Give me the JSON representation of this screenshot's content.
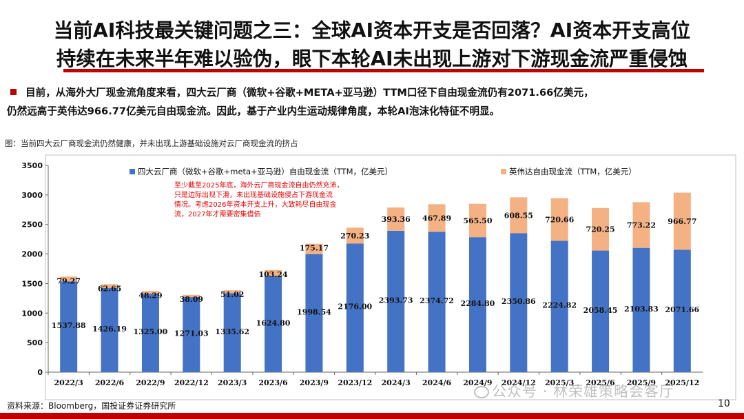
{
  "title": {
    "line1": "当前AI科技最关键问题之三：全球AI资本开支是否回落？AI资本开支高位",
    "line2": "持续在未来半年难以验伪，眼下本轮AI未出现上游对下游现金流严重侵蚀"
  },
  "bullet": {
    "line1": "目前，从海外大厂现金流角度来看，四大云厂商（微软+谷歌+META+亚马逊）TTM口径下自由现金流仍有2071.66亿美元，",
    "line2": "仍然远高于英伟达966.77亿美元自由现金流。因此，基于产业内生运动规律角度，本轮AI泡沫化特征不明显。"
  },
  "figure_caption": "图：当前四大云厂商现金流仍然健康，并未出现上游基础设施对云厂商现金流的挤占",
  "source": "资料来源：Bloomberg，国投证券证券研究所",
  "page_number": "10",
  "watermark": "公众号 · 林荣雄策略会客厅",
  "colors": {
    "title_underline": "#c00000",
    "bottom_bar": "#c00000",
    "cloud_series": "#4472c4",
    "nvidia_series": "#f4b183",
    "annotation_text": "#e00000"
  },
  "chart_data": {
    "type": "bar",
    "stacked": true,
    "categories": [
      "2022/3",
      "2022/6",
      "2022/9",
      "2022/12",
      "2023/3",
      "2023/6",
      "2023/9",
      "2023/12",
      "2024/3",
      "2024/6",
      "2024/9",
      "2024/12",
      "2025/3",
      "2025/6",
      "2025/9",
      "2025/12"
    ],
    "series": [
      {
        "name": "四大云厂商（微软+谷歌+meta+亚马逊）自由现金流（TTM，亿美元）",
        "color": "#4472c4",
        "values": [
          1537.88,
          1426.19,
          1325.0,
          1271.03,
          1335.62,
          1624.8,
          1998.54,
          2176.0,
          2393.73,
          2374.72,
          2284.8,
          2350.86,
          2224.82,
          2058.45,
          2103.83,
          2071.66
        ],
        "labels": [
          "1537.88",
          "1426.19",
          "1325.00",
          "1271.03",
          "1335.62",
          "1624.80",
          "1998.54",
          "2176.00",
          "2393.73",
          "2374.72",
          "2284.80",
          "2350.86",
          "2224.82",
          "2058.45",
          "2103.83",
          "2071.66"
        ]
      },
      {
        "name": "英伟达自由现金流（TTM，亿美元）",
        "color": "#f4b183",
        "values": [
          79.27,
          62.65,
          48.29,
          38.09,
          51.02,
          103.24,
          175.17,
          270.23,
          393.36,
          467.89,
          565.5,
          608.55,
          720.66,
          720.25,
          773.22,
          966.77
        ],
        "labels": [
          "79.27",
          "62.65",
          "48.29",
          "38.09",
          "51.02",
          "103.24",
          "175.17",
          "270.23",
          "393.36",
          "467.89",
          "565.50",
          "608.55",
          "720.66",
          "720.25",
          "773.22",
          "966.77"
        ]
      }
    ],
    "y_ticks": [
      "0",
      "500",
      "1000",
      "1500",
      "2000",
      "2500",
      "3000",
      "3500"
    ],
    "ylim": [
      0,
      3500
    ],
    "y_tick_step": 500,
    "legend_position": "top",
    "annotation": [
      "至少截至2025年底，海外云厂商现金流自由仍然充沛，",
      "只是边际出现下滑，未出现基础设施侵占下游现金流",
      "情况。考虑2026年资本开支上升，大致耗尽自由现金",
      "流，2027年才需要密集借债"
    ]
  }
}
